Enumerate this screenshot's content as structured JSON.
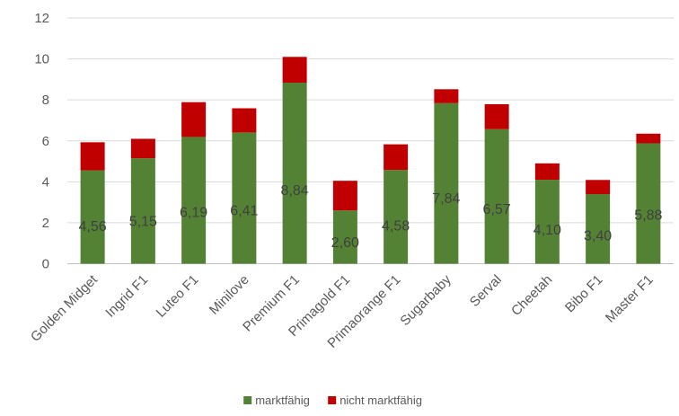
{
  "chart_data": {
    "type": "bar",
    "stacked": true,
    "title": "",
    "xlabel": "",
    "ylabel": "",
    "categories": [
      "Golden Midget",
      "Ingrid F1",
      "Luteo F1",
      "Minilove",
      "Premium F1",
      "Primagold F1",
      "Primaorange F1",
      "Sugarbaby",
      "Serval",
      "Cheetah",
      "Bibo F1",
      "Master F1"
    ],
    "series": [
      {
        "name": "marktfähig",
        "color": "#548235",
        "values": [
          4.56,
          5.15,
          6.19,
          6.41,
          8.84,
          2.6,
          4.58,
          7.84,
          6.57,
          4.1,
          3.4,
          5.88
        ],
        "labels": [
          "4,56",
          "5,15",
          "6,19",
          "6,41",
          "8,84",
          "2,60",
          "4,58",
          "7,84",
          "6,57",
          "4,10",
          "3,40",
          "5,88"
        ]
      },
      {
        "name": "nicht marktfähig",
        "color": "#c00000",
        "values": [
          1.37,
          0.95,
          1.7,
          1.18,
          1.26,
          1.45,
          1.25,
          0.68,
          1.22,
          0.8,
          0.69,
          0.47
        ]
      }
    ],
    "ylim": [
      0,
      12
    ],
    "yticks": [
      "0",
      "2",
      "4",
      "6",
      "8",
      "10",
      "12"
    ],
    "gridlines": true,
    "legend_position": "bottom"
  }
}
